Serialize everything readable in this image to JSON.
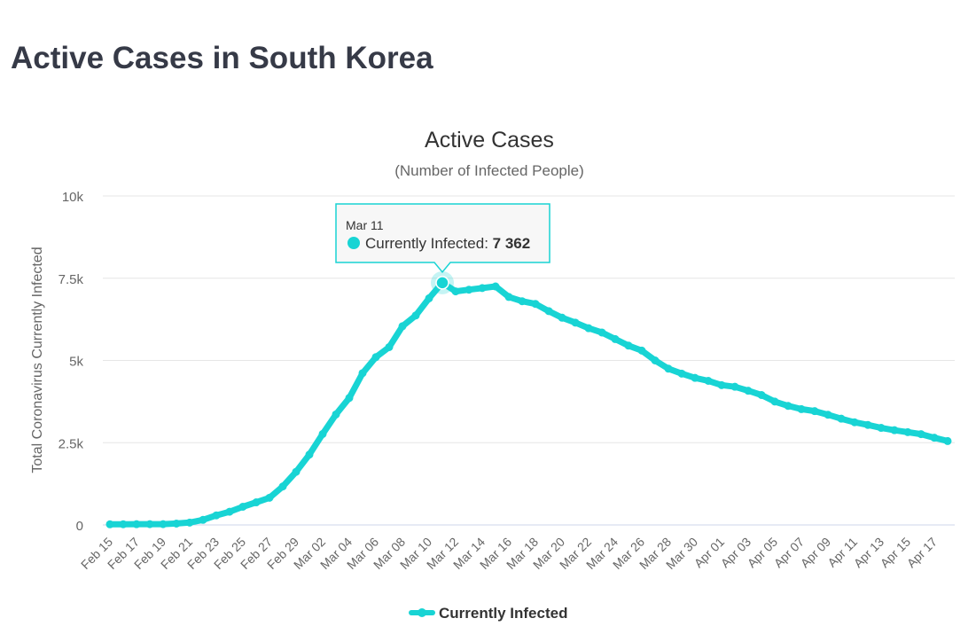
{
  "page": {
    "heading": "Active Cases in South Korea"
  },
  "chart_data": {
    "type": "line",
    "title": "Active Cases",
    "subtitle": "(Number of Infected People)",
    "ylabel": "Total Coronavirus Currently Infected",
    "xlabel": "",
    "ylim": [
      0,
      10000
    ],
    "yticks": [
      {
        "value": 0,
        "label": "0"
      },
      {
        "value": 2500,
        "label": "2.5k"
      },
      {
        "value": 5000,
        "label": "5k"
      },
      {
        "value": 7500,
        "label": "7.5k"
      },
      {
        "value": 10000,
        "label": "10k"
      }
    ],
    "x_tick_labels": [
      "Feb 15",
      "Feb 17",
      "Feb 19",
      "Feb 21",
      "Feb 23",
      "Feb 25",
      "Feb 27",
      "Feb 29",
      "Mar 02",
      "Mar 04",
      "Mar 06",
      "Mar 08",
      "Mar 10",
      "Mar 12",
      "Mar 14",
      "Mar 16",
      "Mar 18",
      "Mar 20",
      "Mar 22",
      "Mar 24",
      "Mar 26",
      "Mar 28",
      "Mar 30",
      "Apr 01",
      "Apr 03",
      "Apr 05",
      "Apr 07",
      "Apr 09",
      "Apr 11",
      "Apr 13",
      "Apr 15",
      "Apr 17"
    ],
    "grid": true,
    "legend_position": "bottom-center",
    "series": [
      {
        "name": "Currently Infected",
        "color": "#18d4d4",
        "x": [
          "Feb 15",
          "Feb 16",
          "Feb 17",
          "Feb 18",
          "Feb 19",
          "Feb 20",
          "Feb 21",
          "Feb 22",
          "Feb 23",
          "Feb 24",
          "Feb 25",
          "Feb 26",
          "Feb 27",
          "Feb 28",
          "Feb 29",
          "Mar 01",
          "Mar 02",
          "Mar 03",
          "Mar 04",
          "Mar 05",
          "Mar 06",
          "Mar 07",
          "Mar 08",
          "Mar 09",
          "Mar 10",
          "Mar 11",
          "Mar 12",
          "Mar 13",
          "Mar 14",
          "Mar 15",
          "Mar 16",
          "Mar 17",
          "Mar 18",
          "Mar 19",
          "Mar 20",
          "Mar 21",
          "Mar 22",
          "Mar 23",
          "Mar 24",
          "Mar 25",
          "Mar 26",
          "Mar 27",
          "Mar 28",
          "Mar 29",
          "Mar 30",
          "Mar 31",
          "Apr 01",
          "Apr 02",
          "Apr 03",
          "Apr 04",
          "Apr 05",
          "Apr 06",
          "Apr 07",
          "Apr 08",
          "Apr 09",
          "Apr 10",
          "Apr 11",
          "Apr 12",
          "Apr 13",
          "Apr 14",
          "Apr 15",
          "Apr 16",
          "Apr 17",
          "Apr 18"
        ],
        "values": [
          19,
          21,
          23,
          24,
          25,
          42,
          72,
          154,
          290,
          402,
          553,
          687,
          826,
          1169,
          1615,
          2139,
          2766,
          3360,
          3861,
          4613,
          5100,
          5405,
          6040,
          6367,
          6890,
          7362,
          7100,
          7150,
          7200,
          7250,
          6930,
          6800,
          6720,
          6500,
          6300,
          6150,
          5980,
          5850,
          5650,
          5450,
          5300,
          5000,
          4750,
          4600,
          4470,
          4380,
          4250,
          4200,
          4080,
          3950,
          3750,
          3620,
          3520,
          3460,
          3350,
          3230,
          3120,
          3040,
          2950,
          2880,
          2820,
          2760,
          2650,
          2550
        ]
      }
    ],
    "tooltip": {
      "date": "Mar 11",
      "series_name": "Currently Infected",
      "separator": ": ",
      "value_label": "7 362",
      "value": 7362
    }
  }
}
